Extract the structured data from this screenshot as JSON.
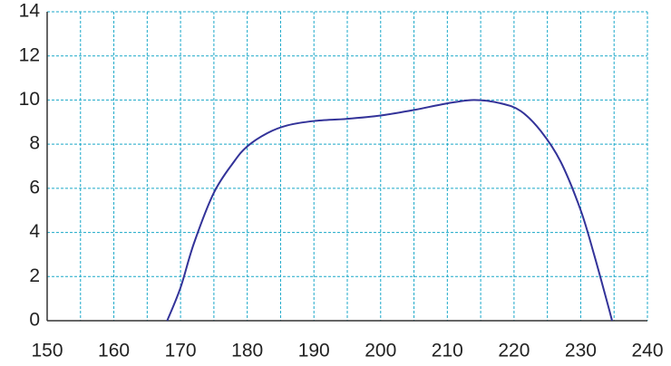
{
  "chart_data": {
    "type": "line",
    "x": [
      168,
      170,
      172,
      175,
      178,
      180,
      183,
      186,
      190,
      195,
      200,
      205,
      210,
      214,
      218,
      221,
      224,
      227,
      230,
      232,
      234,
      234.7
    ],
    "values": [
      0,
      1.5,
      3.5,
      5.8,
      7.2,
      7.9,
      8.5,
      8.85,
      9.05,
      9.15,
      9.3,
      9.55,
      9.85,
      10,
      9.85,
      9.5,
      8.6,
      7.2,
      5,
      3,
      0.8,
      0
    ],
    "color": "#333399",
    "xlim": [
      150,
      240
    ],
    "xticks": [
      150,
      160,
      170,
      180,
      190,
      200,
      210,
      220,
      230,
      240
    ],
    "xminorticks": [
      155,
      165,
      175,
      185,
      195,
      205,
      215,
      225,
      235
    ],
    "ylim": [
      0,
      14
    ],
    "yticks": [
      0,
      2,
      4,
      6,
      8,
      10,
      12,
      14
    ],
    "grid": true,
    "grid_color": "#19a7c8"
  }
}
